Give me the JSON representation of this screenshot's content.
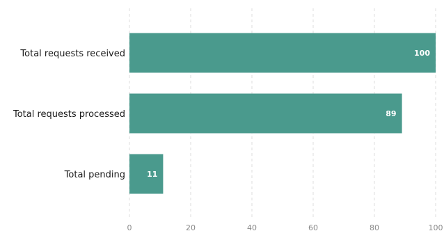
{
  "chart_data": {
    "type": "bar",
    "orientation": "horizontal",
    "categories": [
      "Total requests received",
      "Total requests processed",
      "Total pending"
    ],
    "values": [
      100,
      89,
      11
    ],
    "xlim": [
      0,
      100
    ],
    "x_ticks": [
      0,
      20,
      40,
      60,
      80,
      100
    ],
    "grid": true,
    "bar_color": "#4a9a8d",
    "title": "",
    "xlabel": "",
    "ylabel": ""
  }
}
